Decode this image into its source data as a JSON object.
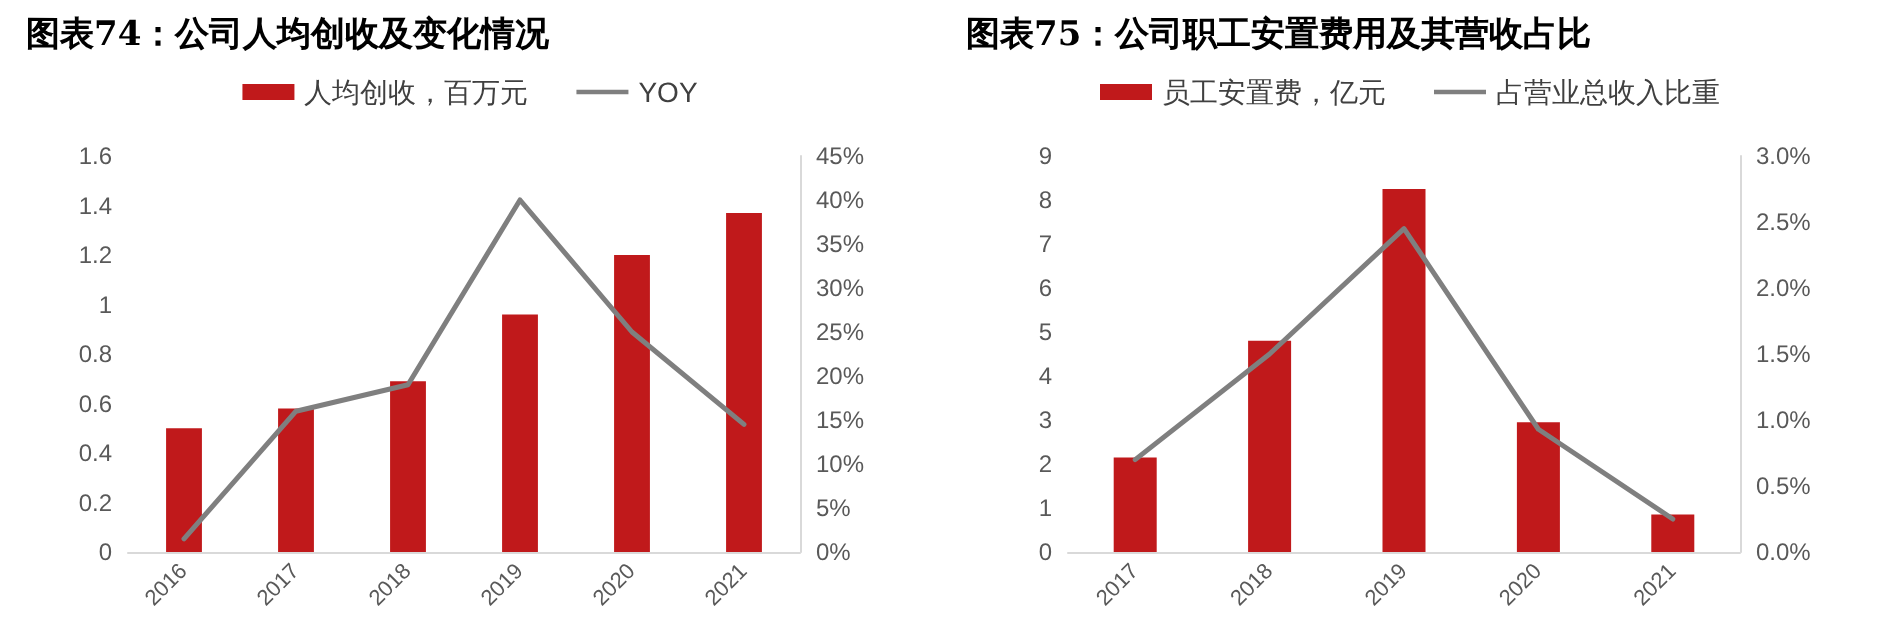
{
  "chart_data": [
    {
      "type": "bar",
      "title": "图表74：公司人均创收及变化情况",
      "categories": [
        "2016",
        "2017",
        "2018",
        "2019",
        "2020",
        "2021"
      ],
      "series": [
        {
          "name": "人均创收，百万元",
          "color": "#c0191b",
          "values": [
            0.5,
            0.58,
            0.69,
            0.96,
            1.2,
            1.37
          ]
        },
        {
          "name": "YOY",
          "type": "line",
          "axis": "y2",
          "color": "#7f7f7f",
          "values": [
            1.5,
            16,
            19,
            40,
            25,
            14.5
          ]
        }
      ],
      "ylim": [
        0,
        1.6
      ],
      "yticks": [
        0,
        0.2,
        0.4,
        0.6,
        0.8,
        1,
        1.2,
        1.4,
        1.6
      ],
      "y2lim": [
        0,
        45
      ],
      "y2ticks": [
        {
          "value": 0,
          "label": "0%"
        },
        {
          "value": 5,
          "label": "5%"
        },
        {
          "value": 10,
          "label": "10%"
        },
        {
          "value": 15,
          "label": "15%"
        },
        {
          "value": 20,
          "label": "20%"
        },
        {
          "value": 25,
          "label": "25%"
        },
        {
          "value": 30,
          "label": "30%"
        },
        {
          "value": 35,
          "label": "35%"
        },
        {
          "value": 40,
          "label": "40%"
        },
        {
          "value": 45,
          "label": "45%"
        }
      ],
      "legend": "top",
      "grid": false,
      "marker": "none",
      "line_style": "solid"
    },
    {
      "type": "bar",
      "title": "图表75：公司职工安置费用及其营收占比",
      "categories": [
        "2017",
        "2018",
        "2019",
        "2020",
        "2021"
      ],
      "series": [
        {
          "name": "员工安置费，亿元",
          "color": "#c0191b",
          "values": [
            2.15,
            4.8,
            8.25,
            2.95,
            0.85
          ]
        },
        {
          "name": "占营业总收入比重",
          "type": "line",
          "axis": "y2",
          "color": "#7f7f7f",
          "values": [
            0.7,
            1.5,
            2.45,
            0.93,
            0.25
          ]
        }
      ],
      "ylim": [
        0,
        9
      ],
      "yticks": [
        0,
        1,
        2,
        3,
        4,
        5,
        6,
        7,
        8,
        9
      ],
      "y2lim": [
        0,
        3
      ],
      "y2ticks": [
        {
          "value": 0,
          "label": "0.0%"
        },
        {
          "value": 0.5,
          "label": "0.5%"
        },
        {
          "value": 1,
          "label": "1.0%"
        },
        {
          "value": 1.5,
          "label": "1.5%"
        },
        {
          "value": 2,
          "label": "2.0%"
        },
        {
          "value": 2.5,
          "label": "2.5%"
        },
        {
          "value": 3,
          "label": "3.0%"
        }
      ],
      "legend": "top",
      "grid": false,
      "marker": "none",
      "line_style": "solid"
    }
  ]
}
